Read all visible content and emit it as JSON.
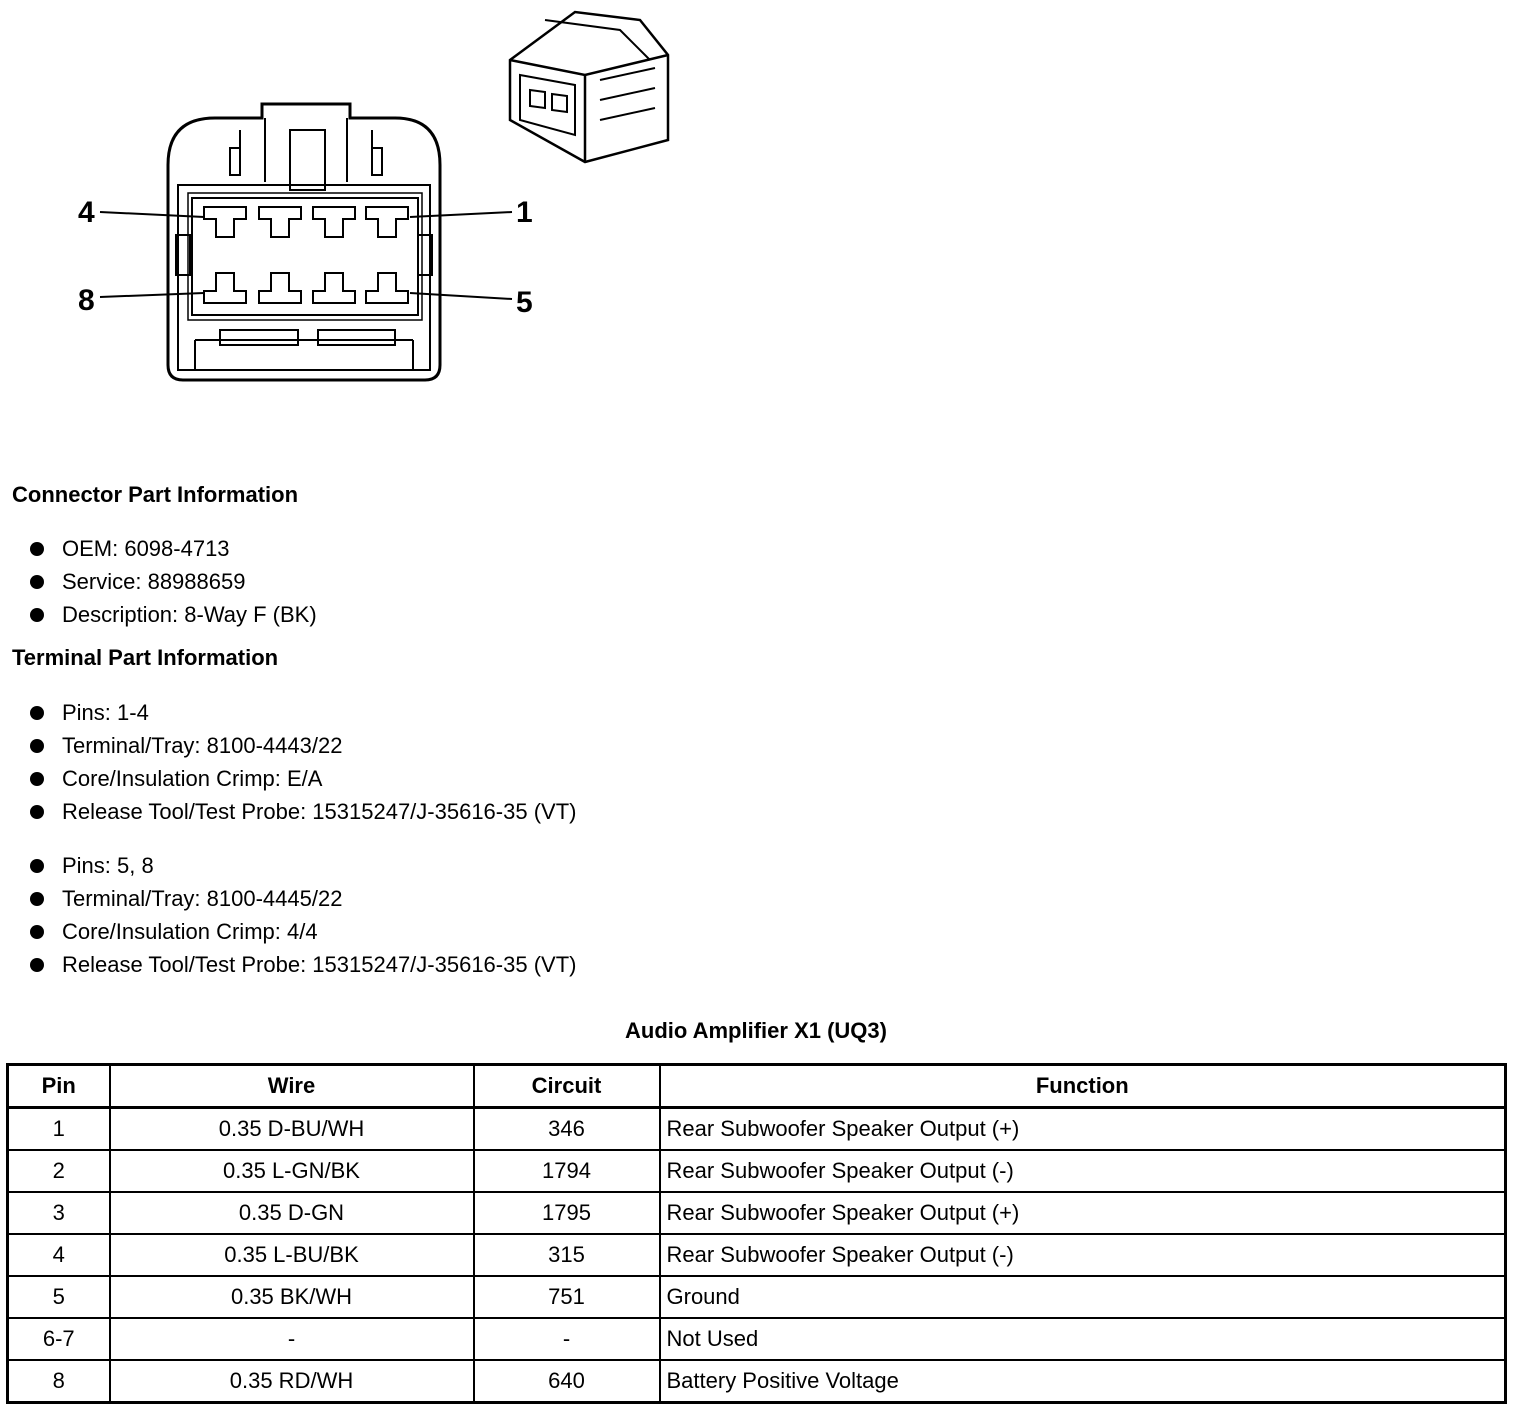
{
  "diagram": {
    "pin_labels": [
      "4",
      "1",
      "8",
      "5"
    ]
  },
  "connector_info": {
    "heading": "Connector Part Information",
    "items": [
      "OEM: 6098-4713",
      "Service: 88988659",
      "Description: 8-Way F (BK)"
    ]
  },
  "terminal_info": {
    "heading": "Terminal Part Information",
    "group1": [
      "Pins: 1-4",
      "Terminal/Tray: 8100-4443/22",
      "Core/Insulation Crimp: E/A",
      "Release Tool/Test Probe: 15315247/J-35616-35 (VT)"
    ],
    "group2": [
      "Pins: 5, 8",
      "Terminal/Tray: 8100-4445/22",
      "Core/Insulation Crimp: 4/4",
      "Release Tool/Test Probe: 15315247/J-35616-35 (VT)"
    ]
  },
  "table": {
    "caption": "Audio Amplifier X1 (UQ3)",
    "headers": [
      "Pin",
      "Wire",
      "Circuit",
      "Function"
    ],
    "rows": [
      [
        "1",
        "0.35 D-BU/WH",
        "346",
        "Rear Subwoofer Speaker Output (+)"
      ],
      [
        "2",
        "0.35 L-GN/BK",
        "1794",
        "Rear Subwoofer Speaker Output (-)"
      ],
      [
        "3",
        "0.35 D-GN",
        "1795",
        "Rear Subwoofer Speaker Output (+)"
      ],
      [
        "4",
        "0.35 L-BU/BK",
        "315",
        "Rear Subwoofer Speaker Output (-)"
      ],
      [
        "5",
        "0.35 BK/WH",
        "751",
        "Ground"
      ],
      [
        "6-7",
        "-",
        "-",
        "Not Used"
      ],
      [
        "8",
        "0.35 RD/WH",
        "640",
        "Battery Positive Voltage"
      ]
    ]
  }
}
